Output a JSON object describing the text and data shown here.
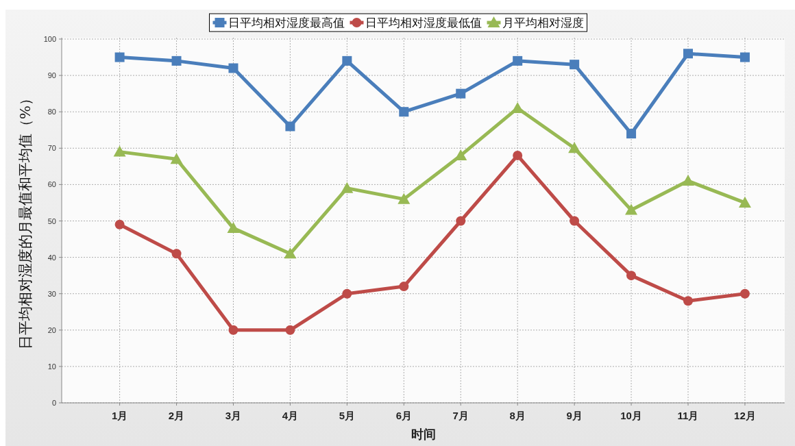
{
  "chart_data": {
    "type": "line",
    "xlabel": "时间",
    "ylabel": "日平均相对湿度的月最值和平均值（%）",
    "categories": [
      "1月",
      "2月",
      "3月",
      "4月",
      "5月",
      "6月",
      "7月",
      "8月",
      "9月",
      "10月",
      "11月",
      "12月"
    ],
    "series": [
      {
        "name": "日平均相对湿度最高值",
        "color": "#4a7ebb",
        "marker": "square",
        "values": [
          95,
          94,
          92,
          76,
          94,
          80,
          85,
          94,
          93,
          74,
          96,
          95
        ]
      },
      {
        "name": "日平均相对湿度最低值",
        "color": "#be4b48",
        "marker": "circle",
        "values": [
          49,
          41,
          20,
          20,
          30,
          32,
          50,
          68,
          50,
          35,
          28,
          30
        ]
      },
      {
        "name": "月平均相对湿度",
        "color": "#98b954",
        "marker": "triangle",
        "values": [
          69,
          67,
          48,
          41,
          59,
          56,
          68,
          81,
          70,
          53,
          61,
          55
        ]
      }
    ],
    "ylim": [
      0,
      100
    ],
    "yticks": [
      0,
      10,
      20,
      30,
      40,
      50,
      60,
      70,
      80,
      90,
      100
    ],
    "grid": true,
    "legend": "top",
    "line_style": "solid"
  }
}
